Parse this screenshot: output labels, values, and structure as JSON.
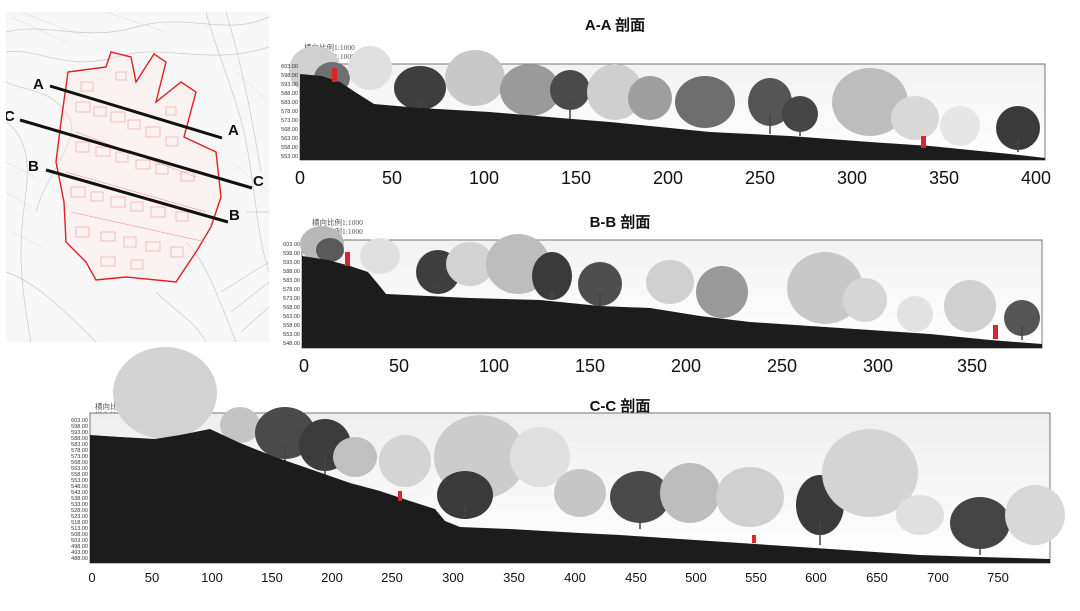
{
  "site_plan": {
    "section_markers": [
      {
        "start": "A",
        "end": "A"
      },
      {
        "start": "C",
        "end": "C"
      },
      {
        "start": "B",
        "end": "B"
      }
    ]
  },
  "sections": [
    {
      "id": "aa",
      "title": "A-A 剖面",
      "scale_lines": [
        "横向比例1:1000",
        "纵向比例1:1000"
      ],
      "x_ticks": [
        "0",
        "50",
        "100",
        "150",
        "200",
        "250",
        "300",
        "350",
        "400"
      ],
      "elevation_ticks": [
        "603.00",
        "598.00",
        "593.00",
        "588.00",
        "583.00",
        "578.00",
        "573.00",
        "568.00",
        "563.00",
        "558.00",
        "553.00"
      ],
      "accent_color": "#d9262a"
    },
    {
      "id": "bb",
      "title": "B-B 剖面",
      "scale_lines": [
        "横向比例1:1000",
        "纵向比例1:1000"
      ],
      "x_ticks": [
        "0",
        "50",
        "100",
        "150",
        "200",
        "250",
        "300",
        "350"
      ],
      "elevation_ticks": [
        "603.00",
        "598.00",
        "593.00",
        "588.00",
        "583.00",
        "578.00",
        "573.00",
        "568.00",
        "563.00",
        "558.00",
        "553.00",
        "548.00"
      ],
      "accent_color": "#d9262a"
    },
    {
      "id": "cc",
      "title": "C-C 剖面",
      "scale_lines": [
        "横向比例1:1000",
        "纵向比例1:1000"
      ],
      "x_ticks": [
        "0",
        "50",
        "100",
        "150",
        "200",
        "250",
        "300",
        "350",
        "400",
        "450",
        "500",
        "550",
        "600",
        "650",
        "700",
        "750"
      ],
      "elevation_ticks": [
        "603.00",
        "598.00",
        "593.00",
        "588.00",
        "583.00",
        "578.00",
        "573.00",
        "568.00",
        "563.00",
        "558.00",
        "553.00",
        "548.00",
        "543.00",
        "538.00",
        "533.00",
        "528.00",
        "523.00",
        "518.00",
        "513.00",
        "508.00",
        "503.00",
        "498.00",
        "493.00",
        "488.00"
      ],
      "accent_color": "#d9262a"
    }
  ]
}
